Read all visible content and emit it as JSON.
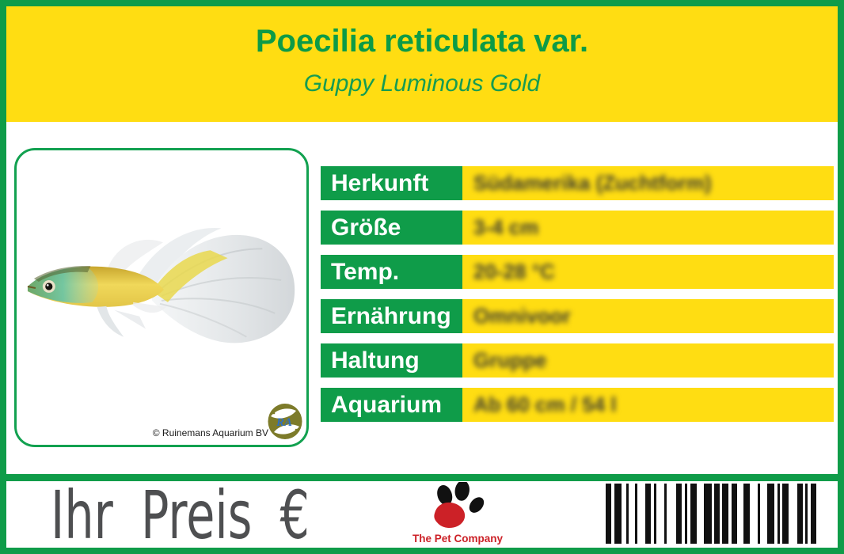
{
  "header": {
    "title": "Poecilia reticulata var.",
    "subtitle": "Guppy Luminous Gold"
  },
  "photo": {
    "copyright": "© Ruinemans Aquarium BV",
    "logo_monogram": "RA"
  },
  "table": {
    "values_blurred": true,
    "rows": [
      {
        "label": "Herkunft",
        "value": "Südamerika (Zuchtform)"
      },
      {
        "label": "Größe",
        "value": "3-4 cm"
      },
      {
        "label": "Temp.",
        "value": "20-28 °C"
      },
      {
        "label": "Ernährung",
        "value": "Omnivoor"
      },
      {
        "label": "Haltung",
        "value": "Gruppe"
      },
      {
        "label": "Aquarium",
        "value": "Ab 60 cm / 54 l"
      }
    ]
  },
  "footer": {
    "price_label": "Ihr Preis €",
    "brand": "The Pet Company"
  },
  "barcode": {
    "bars": [
      [
        7,
        4
      ],
      [
        9,
        6
      ],
      [
        3,
        8
      ],
      [
        3,
        10
      ],
      [
        7,
        4
      ],
      [
        3,
        10
      ],
      [
        3,
        12
      ],
      [
        7,
        4
      ],
      [
        3,
        4
      ],
      [
        8,
        9
      ],
      [
        10,
        3
      ],
      [
        7,
        3
      ],
      [
        8,
        4
      ],
      [
        7,
        8
      ],
      [
        8,
        10
      ],
      [
        3,
        9
      ],
      [
        9,
        4
      ],
      [
        3,
        3
      ],
      [
        8,
        11
      ],
      [
        7,
        3
      ],
      [
        3,
        4
      ],
      [
        7,
        0
      ]
    ]
  },
  "colors": {
    "green": "#0f9c49",
    "yellow": "#ffdd12",
    "price_gray": "#4e4f51",
    "brand_red": "#cc2127",
    "logo_olive": "#7d7b2a",
    "value_text": "#3a3a32"
  }
}
